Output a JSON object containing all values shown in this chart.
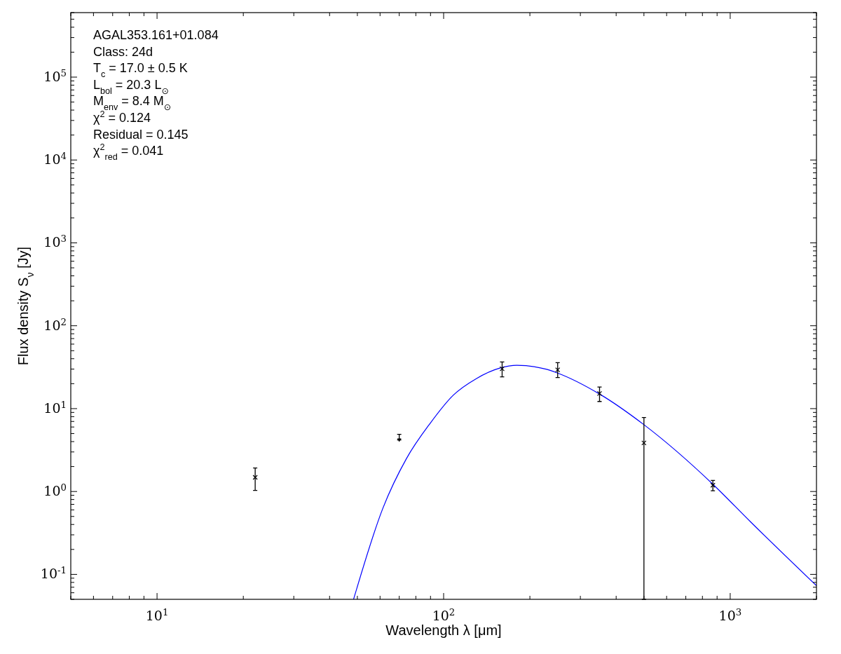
{
  "chart_data": {
    "type": "scatter",
    "xlabel": "Wavelength λ [μm]",
    "ylabel": "Flux density S$_{ν}$ [Jy]",
    "log": "xy",
    "xlim": [
      5,
      2000
    ],
    "ylim": [
      0.05,
      600000
    ],
    "xticks": [
      {
        "value": 10,
        "label": "10$^{1}$"
      },
      {
        "value": 100,
        "label": "10$^{2}$"
      },
      {
        "value": 1000,
        "label": "10$^{3}$"
      }
    ],
    "yticks": [
      {
        "value": 0.1,
        "label": "10$^{-1}$"
      },
      {
        "value": 1,
        "label": "10$^{0}$"
      },
      {
        "value": 10,
        "label": "10$^{1}$"
      },
      {
        "value": 100,
        "label": "10$^{2}$"
      },
      {
        "value": 1000,
        "label": "10$^{3}$"
      },
      {
        "value": 10000,
        "label": "10$^{4}$"
      },
      {
        "value": 100000,
        "label": "10$^{5}$"
      }
    ],
    "annotations": [
      "AGAL353.161+01.084",
      "Class: 24d",
      "T$_{c}$ = 17.0 ± 0.5 K",
      "L$_{bol}$ = 20.3 L$_{⊙}$",
      "M$_{env}$ = 8.4 M$_{⊙}$",
      "χ$^{2}$ = 0.124",
      "Residual = 0.145",
      "χ$^{2}$$_{red}$ = 0.041"
    ],
    "series": [
      {
        "type": "line",
        "color": "#0000ff",
        "line_style": "solid",
        "x": [
          48.5,
          61.4,
          74.2,
          89.6,
          108,
          130,
          157,
          180,
          229,
          249,
          350,
          500,
          871,
          1178,
          2000
        ],
        "values": [
          0.05,
          0.63,
          2.5,
          6.6,
          14.5,
          23,
          30.8,
          33.3,
          29.8,
          27,
          15,
          6.4,
          1.22,
          0.43,
          0.073
        ]
      },
      {
        "color": "#000000",
        "marker": "cross",
        "x": [
          22,
          160,
          250,
          350,
          500,
          870
        ],
        "values": [
          1.48,
          30.2,
          29.4,
          15.2,
          3.86,
          1.19
        ],
        "errors": [
          [
            1.03,
            1.92
          ],
          [
            24.2,
            36.5
          ],
          [
            23.7,
            35.8
          ],
          [
            12.2,
            18.2
          ],
          [
            0.05,
            7.8
          ],
          [
            1.02,
            1.36
          ]
        ]
      },
      {
        "color": "#000000",
        "marker": "triangle",
        "x": [
          70
        ],
        "values": [
          4.2
        ],
        "errors": [
          [
            4.2,
            4.9
          ]
        ]
      }
    ]
  }
}
